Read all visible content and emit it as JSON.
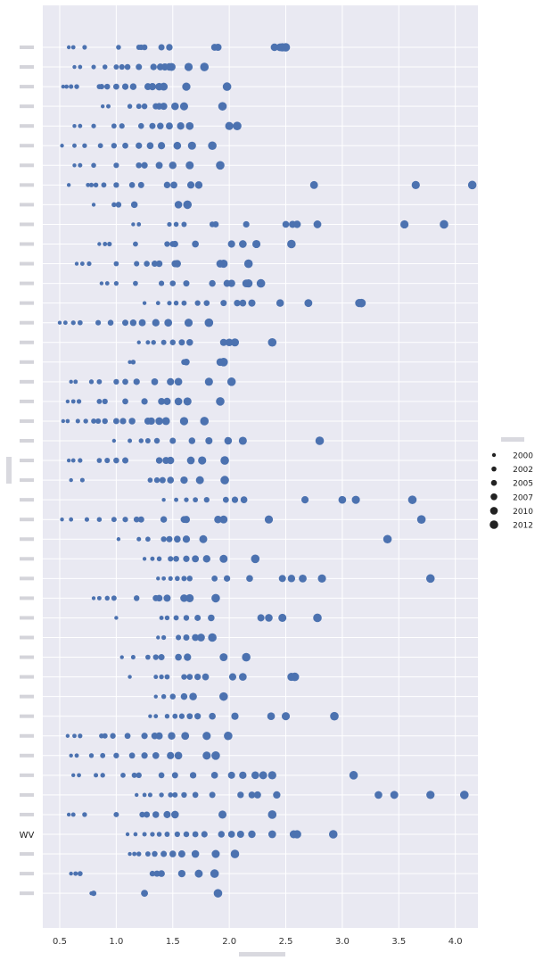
{
  "chart_data": {
    "type": "scatter",
    "xlim": [
      0.35,
      4.2
    ],
    "xticks": [
      "0.5",
      "1.0",
      "1.5",
      "2.0",
      "2.5",
      "3.0",
      "3.5",
      "4.0"
    ],
    "xtick_values": [
      0.5,
      1.0,
      1.5,
      2.0,
      2.5,
      3.0,
      3.5,
      4.0
    ],
    "grid": true,
    "background": "#e9e9f2",
    "point_color": "#4c72b0",
    "legend_placement": "right",
    "legend_entries": [
      "2000",
      "2002",
      "2005",
      "2007",
      "2010",
      "2012"
    ],
    "visible_state_label": "WV",
    "rows": [
      {
        "label": "",
        "x": [
          0.58,
          0.62,
          0.72,
          1.02,
          1.2,
          1.22,
          1.25,
          1.4,
          1.47,
          1.87,
          1.9,
          2.4,
          2.45,
          2.47,
          2.5
        ]
      },
      {
        "label": "",
        "x": [
          0.63,
          0.68,
          0.8,
          0.9,
          1.0,
          1.05,
          1.1,
          1.2,
          1.33,
          1.39,
          1.43,
          1.47,
          1.49,
          1.64,
          1.78
        ]
      },
      {
        "label": "",
        "x": [
          0.53,
          0.56,
          0.6,
          0.65,
          0.85,
          0.87,
          0.92,
          1.0,
          1.08,
          1.15,
          1.28,
          1.32,
          1.38,
          1.42,
          1.62,
          1.98
        ]
      },
      {
        "label": "",
        "x": [
          0.88,
          0.93,
          1.12,
          1.2,
          1.25,
          1.35,
          1.38,
          1.42,
          1.52,
          1.6,
          1.94
        ]
      },
      {
        "label": "",
        "x": [
          0.63,
          0.68,
          0.8,
          0.98,
          1.05,
          1.22,
          1.32,
          1.39,
          1.47,
          1.57,
          1.65,
          2.0,
          2.07
        ]
      },
      {
        "label": "",
        "x": [
          0.52,
          0.63,
          0.72,
          0.86,
          0.98,
          1.08,
          1.2,
          1.3,
          1.4,
          1.54,
          1.67,
          1.85
        ]
      },
      {
        "label": "",
        "x": [
          0.63,
          0.68,
          0.8,
          1.0,
          1.2,
          1.25,
          1.38,
          1.5,
          1.65,
          1.92
        ]
      },
      {
        "label": "",
        "x": [
          0.58,
          0.75,
          0.78,
          0.82,
          0.89,
          1.0,
          1.14,
          1.22,
          1.45,
          1.51,
          1.66,
          1.73,
          2.75,
          3.65,
          4.15
        ]
      },
      {
        "label": "",
        "x": [
          0.8,
          0.98,
          1.02,
          1.16,
          1.55,
          1.63
        ]
      },
      {
        "label": "",
        "x": [
          1.15,
          1.2,
          1.47,
          1.53,
          1.6,
          1.85,
          1.88,
          2.15,
          2.5,
          2.56,
          2.6,
          2.78,
          3.55,
          3.9
        ]
      },
      {
        "label": "",
        "x": [
          0.85,
          0.9,
          0.94,
          1.17,
          1.45,
          1.5,
          1.52,
          1.7,
          2.02,
          2.12,
          2.24,
          2.55
        ]
      },
      {
        "label": "",
        "x": [
          0.65,
          0.7,
          0.76,
          1.0,
          1.18,
          1.27,
          1.34,
          1.38,
          1.52,
          1.54,
          1.92,
          1.95,
          2.17
        ]
      },
      {
        "label": "",
        "x": [
          0.87,
          0.92,
          1.0,
          1.17,
          1.4,
          1.5,
          1.62,
          1.85,
          1.98,
          2.02,
          2.15,
          2.17,
          2.28
        ]
      },
      {
        "label": "",
        "x": [
          1.25,
          1.37,
          1.47,
          1.53,
          1.6,
          1.72,
          1.8,
          1.95,
          2.07,
          2.12,
          2.2,
          2.45,
          2.7,
          3.15,
          3.17
        ]
      },
      {
        "label": "",
        "x": [
          0.5,
          0.55,
          0.62,
          0.68,
          0.84,
          0.95,
          1.08,
          1.15,
          1.23,
          1.35,
          1.46,
          1.64,
          1.82
        ]
      },
      {
        "label": "",
        "x": [
          1.2,
          1.28,
          1.33,
          1.42,
          1.5,
          1.58,
          1.65,
          1.95,
          2.0,
          2.05,
          2.38
        ]
      },
      {
        "label": "",
        "x": [
          1.12,
          1.15,
          1.6,
          1.62,
          1.92,
          1.95
        ]
      },
      {
        "label": "",
        "x": [
          0.6,
          0.64,
          0.78,
          0.85,
          1.0,
          1.08,
          1.18,
          1.34,
          1.48,
          1.55,
          1.82,
          2.02
        ]
      },
      {
        "label": "",
        "x": [
          0.57,
          0.62,
          0.67,
          0.85,
          0.9,
          1.08,
          1.25,
          1.4,
          1.45,
          1.55,
          1.63,
          1.92
        ]
      },
      {
        "label": "",
        "x": [
          0.53,
          0.57,
          0.66,
          0.73,
          0.8,
          0.84,
          0.9,
          1.0,
          1.06,
          1.14,
          1.28,
          1.31,
          1.38,
          1.44,
          1.6,
          1.78
        ]
      },
      {
        "label": "",
        "x": [
          0.98,
          1.12,
          1.22,
          1.28,
          1.36,
          1.5,
          1.67,
          1.82,
          1.99,
          2.12,
          2.8
        ]
      },
      {
        "label": "",
        "x": [
          0.58,
          0.62,
          0.68,
          0.85,
          0.92,
          1.0,
          1.08,
          1.38,
          1.44,
          1.48,
          1.66,
          1.76,
          1.96
        ]
      },
      {
        "label": "",
        "x": [
          0.6,
          0.7,
          1.3,
          1.36,
          1.41,
          1.48,
          1.6,
          1.74,
          1.96
        ]
      },
      {
        "label": "",
        "x": [
          1.42,
          1.53,
          1.62,
          1.7,
          1.8,
          1.97,
          2.05,
          2.13,
          2.67,
          3.0,
          3.12,
          3.62
        ]
      },
      {
        "label": "",
        "x": [
          0.52,
          0.6,
          0.74,
          0.85,
          0.98,
          1.08,
          1.18,
          1.22,
          1.42,
          1.6,
          1.62,
          1.9,
          1.95,
          2.35,
          3.7
        ]
      },
      {
        "label": "",
        "x": [
          1.02,
          1.2,
          1.28,
          1.42,
          1.47,
          1.54,
          1.62,
          1.77,
          3.4
        ]
      },
      {
        "label": "",
        "x": [
          1.25,
          1.32,
          1.38,
          1.48,
          1.53,
          1.62,
          1.7,
          1.8,
          1.95,
          2.23
        ]
      },
      {
        "label": "",
        "x": [
          1.37,
          1.42,
          1.48,
          1.54,
          1.6,
          1.65,
          1.87,
          1.98,
          2.18,
          2.47,
          2.55,
          2.65,
          2.82,
          3.78
        ]
      },
      {
        "label": "",
        "x": [
          0.8,
          0.85,
          0.92,
          0.98,
          1.18,
          1.35,
          1.38,
          1.45,
          1.6,
          1.65,
          1.88
        ]
      },
      {
        "label": "",
        "x": [
          1.0,
          1.4,
          1.45,
          1.53,
          1.62,
          1.72,
          1.84,
          2.28,
          2.35,
          2.47,
          2.78
        ]
      },
      {
        "label": "",
        "x": [
          1.37,
          1.42,
          1.55,
          1.62,
          1.7,
          1.75,
          1.85
        ]
      },
      {
        "label": "",
        "x": [
          1.05,
          1.15,
          1.28,
          1.35,
          1.4,
          1.55,
          1.63,
          1.95,
          2.15
        ]
      },
      {
        "label": "",
        "x": [
          1.12,
          1.35,
          1.4,
          1.45,
          1.6,
          1.65,
          1.72,
          1.79,
          2.03,
          2.12,
          2.55,
          2.58
        ]
      },
      {
        "label": "",
        "x": [
          1.35,
          1.42,
          1.5,
          1.6,
          1.68,
          1.95
        ]
      },
      {
        "label": "",
        "x": [
          1.3,
          1.35,
          1.45,
          1.52,
          1.58,
          1.65,
          1.72,
          1.85,
          2.05,
          2.37,
          2.5,
          2.93
        ]
      },
      {
        "label": "",
        "x": [
          0.57,
          0.63,
          0.68,
          0.87,
          0.9,
          0.97,
          1.1,
          1.25,
          1.34,
          1.38,
          1.49,
          1.61,
          1.8,
          1.99
        ]
      },
      {
        "label": "",
        "x": [
          0.6,
          0.65,
          0.78,
          0.88,
          1.0,
          1.14,
          1.25,
          1.35,
          1.48,
          1.55,
          1.8,
          1.88
        ]
      },
      {
        "label": "",
        "x": [
          0.62,
          0.67,
          0.82,
          0.88,
          1.06,
          1.16,
          1.2,
          1.4,
          1.52,
          1.68,
          1.87,
          2.02,
          2.12,
          2.23,
          2.3,
          2.38,
          3.1
        ]
      },
      {
        "label": "",
        "x": [
          1.18,
          1.25,
          1.3,
          1.4,
          1.48,
          1.52,
          1.6,
          1.7,
          1.85,
          2.1,
          2.2,
          2.25,
          2.42,
          3.32,
          3.46,
          3.78,
          4.08
        ]
      },
      {
        "label": "",
        "x": [
          0.58,
          0.62,
          0.72,
          1.0,
          1.23,
          1.27,
          1.35,
          1.45,
          1.52,
          1.94,
          2.38
        ]
      },
      {
        "label": "WV",
        "x": [
          1.1,
          1.17,
          1.25,
          1.32,
          1.38,
          1.45,
          1.54,
          1.62,
          1.7,
          1.78,
          1.93,
          2.02,
          2.1,
          2.2,
          2.38,
          2.57,
          2.6,
          2.92
        ]
      },
      {
        "label": "",
        "x": [
          1.12,
          1.16,
          1.2,
          1.28,
          1.34,
          1.42,
          1.5,
          1.58,
          1.7,
          1.88,
          2.05
        ]
      },
      {
        "label": "",
        "x": [
          0.6,
          0.64,
          0.68,
          1.32,
          1.36,
          1.4,
          1.58,
          1.73,
          1.87
        ]
      },
      {
        "label": "",
        "x": [
          0.78,
          0.8,
          1.25,
          1.9
        ]
      }
    ]
  }
}
